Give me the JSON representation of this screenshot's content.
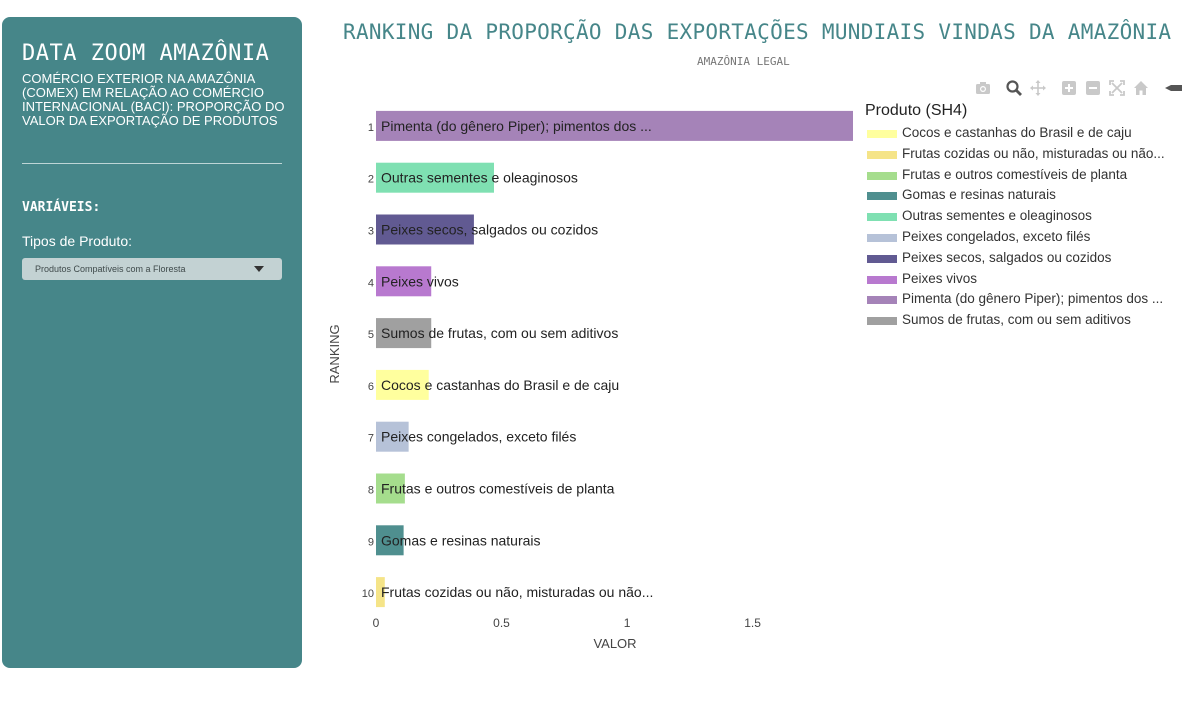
{
  "sidebar": {
    "title": "DATA ZOOM AMAZÔNIA",
    "subtitle": "COMÉRCIO EXTERIOR NA AMAZÔNIA (COMEX) EM RELAÇÃO AO COMÉRCIO INTERNACIONAL (BACI): PROPORÇÃO DO VALOR DA EXPORTAÇÃO DE PRODUTOS",
    "section_heading": "VARIÁVEIS:",
    "filter_label": "Tipos de Produto:",
    "dropdown_value": "Produtos Compatíveis com a Floresta",
    "background_color": "#468689"
  },
  "chart_header": {
    "title": "RANKING DA PROPORÇÃO DAS EXPORTAÇÕES MUNDIAIS VINDAS DA AMAZÔNIA",
    "subtitle": "AMAZÔNIA LEGAL"
  },
  "modebar": {
    "icons": [
      "camera-icon",
      "zoom-icon",
      "pan-icon",
      "zoom-in-icon",
      "zoom-out-icon",
      "autoscale-icon",
      "home-icon",
      "spike-lines-icon"
    ]
  },
  "legend": {
    "title": "Produto (SH4)",
    "items": [
      {
        "label": "Cocos e castanhas do Brasil e de caju",
        "color": "#ffff9e"
      },
      {
        "label": "Frutas cozidas ou não, misturadas ou não...",
        "color": "#f5e488"
      },
      {
        "label": "Frutas e outros comestíveis de planta",
        "color": "#a5dd8d"
      },
      {
        "label": "Gomas e resinas naturais",
        "color": "#4f8f8f"
      },
      {
        "label": "Outras sementes e oleaginosos",
        "color": "#7fe0b2"
      },
      {
        "label": "Peixes congelados, exceto filés",
        "color": "#b6c2d8"
      },
      {
        "label": "Peixes secos, salgados ou cozidos",
        "color": "#615a92"
      },
      {
        "label": "Peixes vivos",
        "color": "#b879cf"
      },
      {
        "label": "Pimenta (do gênero Piper); pimentos dos ...",
        "color": "#a583b8"
      },
      {
        "label": "Sumos de frutas, com ou sem aditivos",
        "color": "#a0a0a0"
      }
    ]
  },
  "chart_data": {
    "type": "bar",
    "orientation": "horizontal",
    "xlabel": "VALOR",
    "ylabel": "RANKING",
    "xlim": [
      0,
      1.9
    ],
    "xticks": [
      "0",
      "0.5",
      "1",
      "1.5"
    ],
    "xtick_values": [
      0,
      0.5,
      1,
      1.5
    ],
    "bars": [
      {
        "rank": "1",
        "label": "Pimenta (do gênero Piper); pimentos dos ...",
        "value": 1.9,
        "color": "#a583b8"
      },
      {
        "rank": "2",
        "label": "Outras sementes e oleaginosos",
        "value": 0.47,
        "color": "#7fe0b2"
      },
      {
        "rank": "3",
        "label": "Peixes secos, salgados ou cozidos",
        "value": 0.39,
        "color": "#615a92"
      },
      {
        "rank": "4",
        "label": "Peixes vivos",
        "value": 0.22,
        "color": "#b879cf"
      },
      {
        "rank": "5",
        "label": "Sumos de frutas, com ou sem aditivos",
        "value": 0.22,
        "color": "#a0a0a0"
      },
      {
        "rank": "6",
        "label": "Cocos e castanhas do Brasil e de caju",
        "value": 0.21,
        "color": "#ffff9e"
      },
      {
        "rank": "7",
        "label": "Peixes congelados, exceto filés",
        "value": 0.13,
        "color": "#b6c2d8"
      },
      {
        "rank": "8",
        "label": "Frutas e outros comestíveis de planta",
        "value": 0.115,
        "color": "#a5dd8d"
      },
      {
        "rank": "9",
        "label": "Gomas e resinas naturais",
        "value": 0.11,
        "color": "#4f8f8f"
      },
      {
        "rank": "10",
        "label": "Frutas cozidas ou não, misturadas ou não...",
        "value": 0.035,
        "color": "#f5e488"
      }
    ]
  }
}
